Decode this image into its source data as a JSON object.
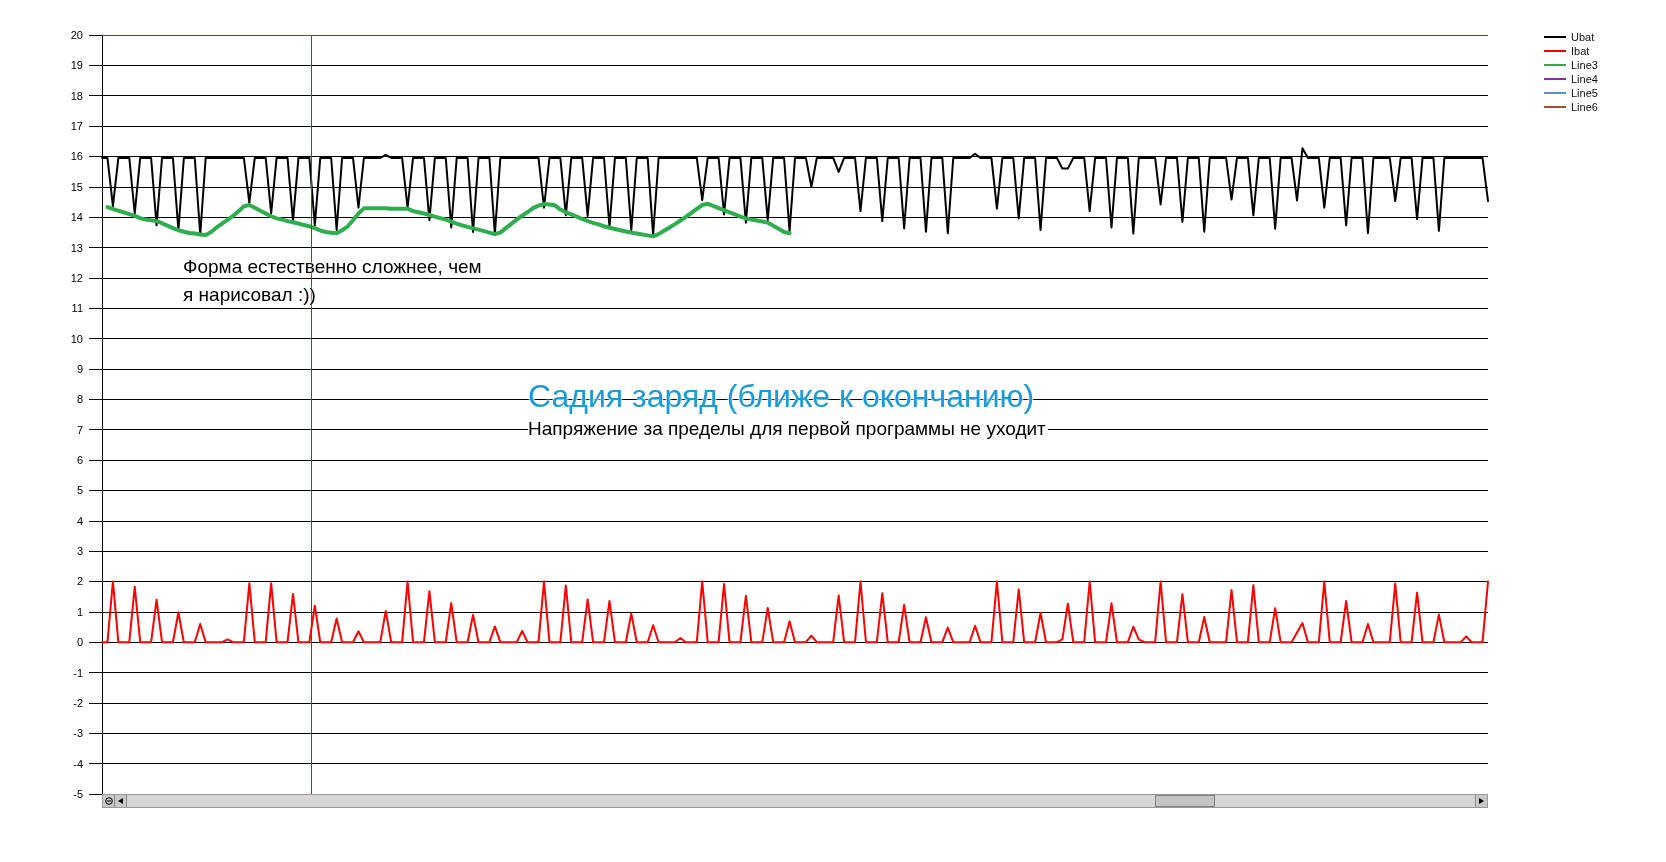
{
  "chart_data": {
    "type": "line",
    "title": "Садия заряд (ближе к окончанию)",
    "subtitle": "Напряжение за пределы для первой программы не уходит",
    "annotations": [
      "Форма естественно сложнее, чем я нарисовал :))"
    ],
    "categories": [
      null,
      null,
      null,
      null,
      null,
      null,
      null,
      null,
      null,
      null,
      null,
      null,
      null,
      null,
      null,
      null,
      null,
      null,
      null,
      null,
      null,
      null,
      null,
      null,
      null,
      null,
      null,
      null,
      null,
      null,
      null,
      null,
      null,
      null,
      null,
      null,
      null,
      null,
      null,
      null,
      null,
      null,
      null,
      null,
      null,
      null,
      null,
      null,
      null,
      null,
      null,
      null,
      null,
      null,
      null,
      null,
      null,
      null,
      null,
      null,
      null,
      null,
      null,
      null,
      null,
      null,
      null,
      null,
      null,
      null,
      null,
      null,
      null,
      null,
      null,
      null,
      null,
      null,
      null,
      null,
      null,
      null,
      null,
      null,
      null,
      null,
      null,
      null,
      null,
      null,
      null,
      null,
      null,
      null,
      null,
      null,
      null,
      null,
      null,
      null,
      null,
      null,
      null,
      null,
      null,
      null,
      null,
      null,
      null,
      null,
      null,
      null,
      null,
      null,
      null,
      null,
      null,
      null,
      null,
      null,
      null,
      null,
      null,
      null,
      null,
      null,
      null,
      null,
      null,
      null,
      null,
      null,
      null,
      null,
      null,
      null,
      null,
      null,
      null,
      null,
      null,
      null,
      null,
      null,
      null,
      null,
      null,
      null,
      null,
      null,
      null,
      null,
      null,
      null,
      null,
      null,
      null,
      null,
      null,
      null,
      null,
      null,
      null,
      null,
      null,
      null,
      null,
      null,
      null,
      null,
      null,
      null,
      null,
      null,
      null,
      null,
      null,
      null,
      null,
      null,
      null,
      null,
      null,
      null,
      null,
      null,
      null,
      null,
      null,
      null,
      null,
      null,
      null,
      null,
      null,
      null,
      null,
      null,
      null,
      null,
      null,
      null,
      null,
      null,
      null,
      null,
      null,
      null,
      null,
      null,
      null,
      null,
      null,
      null,
      null,
      null,
      null,
      null,
      null,
      null,
      null,
      null,
      null,
      null,
      null,
      null,
      null,
      null,
      null,
      null,
      null,
      null,
      null,
      null,
      null,
      null,
      null,
      null,
      null,
      null,
      null,
      null,
      null,
      null,
      null,
      null,
      null,
      null,
      null,
      null,
      null,
      null,
      null,
      null,
      null
    ],
    "series": [
      {
        "name": "Ubat",
        "color": "#000000",
        "values": [
          15.95,
          15.95,
          14.36,
          15.95,
          15.95,
          15.95,
          14.12,
          15.95,
          15.95,
          15.95,
          13.73,
          15.95,
          15.95,
          15.95,
          13.57,
          15.95,
          15.95,
          15.95,
          13.42,
          15.95,
          15.95,
          15.95,
          15.95,
          15.95,
          15.95,
          15.95,
          15.95,
          14.47,
          15.95,
          15.95,
          15.95,
          14.12,
          15.95,
          15.95,
          15.95,
          13.87,
          15.95,
          15.95,
          15.95,
          13.73,
          15.95,
          15.95,
          15.95,
          13.58,
          15.95,
          15.95,
          15.95,
          14.31,
          15.95,
          15.95,
          15.95,
          15.95,
          16.05,
          15.95,
          15.95,
          15.95,
          14.31,
          15.95,
          15.95,
          15.95,
          13.9,
          15.95,
          15.95,
          15.95,
          13.66,
          15.95,
          15.95,
          15.95,
          13.51,
          15.95,
          15.95,
          15.95,
          13.44,
          15.95,
          15.95,
          15.95,
          15.95,
          15.95,
          15.95,
          15.95,
          15.95,
          14.31,
          15.95,
          15.95,
          15.95,
          14.06,
          15.95,
          15.95,
          15.95,
          14.04,
          15.95,
          15.95,
          15.95,
          13.68,
          15.95,
          15.95,
          15.95,
          13.57,
          15.95,
          15.95,
          15.95,
          13.4,
          15.95,
          15.95,
          15.95,
          15.95,
          15.95,
          15.95,
          15.95,
          15.95,
          14.56,
          15.95,
          15.95,
          15.95,
          14.09,
          15.95,
          15.95,
          15.95,
          13.82,
          15.95,
          15.95,
          15.95,
          13.9,
          15.95,
          15.95,
          15.95,
          13.54,
          15.95,
          15.95,
          15.95,
          15.0,
          15.95,
          15.95,
          15.95,
          15.95,
          15.49,
          15.95,
          15.95,
          15.95,
          14.2,
          15.95,
          15.95,
          15.95,
          13.87,
          15.95,
          15.95,
          15.95,
          13.63,
          15.95,
          15.95,
          15.95,
          13.52,
          15.95,
          15.95,
          15.95,
          13.47,
          15.95,
          15.95,
          15.95,
          15.95,
          16.09,
          15.95,
          15.95,
          15.95,
          14.28,
          15.95,
          15.95,
          15.95,
          13.96,
          15.95,
          15.95,
          15.95,
          13.58,
          15.95,
          15.95,
          15.95,
          15.6,
          15.6,
          15.95,
          15.95,
          15.95,
          14.2,
          15.95,
          15.95,
          15.95,
          13.66,
          15.95,
          15.95,
          15.95,
          13.46,
          15.95,
          15.95,
          15.95,
          15.95,
          14.42,
          15.95,
          15.95,
          15.95,
          13.84,
          15.95,
          15.95,
          15.95,
          13.52,
          15.95,
          15.95,
          15.95,
          15.95,
          14.58,
          15.95,
          15.95,
          15.95,
          14.06,
          15.95,
          15.95,
          15.95,
          13.62,
          15.95,
          15.95,
          15.95,
          14.55,
          16.27,
          15.95,
          15.95,
          15.95,
          14.31,
          15.95,
          15.95,
          15.95,
          13.73,
          15.95,
          15.95,
          15.95,
          13.47,
          15.95,
          15.95,
          15.95,
          15.95,
          14.53,
          15.95,
          15.95,
          15.95,
          13.93,
          15.95,
          15.95,
          15.95,
          13.55,
          15.95,
          15.95,
          15.95,
          15.95,
          15.95,
          15.95,
          15.95,
          15.95,
          14.53
        ]
      },
      {
        "name": "Ibat",
        "color": "#ff0000",
        "values": [
          0,
          0,
          2.0,
          0,
          0,
          0,
          1.83,
          0,
          0,
          0,
          1.4,
          0,
          0,
          0,
          0.98,
          0,
          0,
          0,
          0.6,
          0,
          0,
          0,
          0,
          0.09,
          0,
          0,
          0,
          1.94,
          0,
          0,
          0,
          1.94,
          0,
          0,
          0,
          1.59,
          0,
          0,
          0,
          1.2,
          0,
          0,
          0,
          0.78,
          0,
          0,
          0,
          0.36,
          0,
          0,
          0,
          0,
          1.03,
          0,
          0,
          0,
          2.0,
          0,
          0,
          0,
          1.68,
          0,
          0,
          0,
          1.29,
          0,
          0,
          0,
          0.9,
          0,
          0,
          0,
          0.52,
          0,
          0,
          0,
          0,
          0.37,
          0,
          0,
          0,
          2.0,
          0,
          0,
          0,
          1.87,
          0,
          0,
          0,
          1.41,
          0,
          0,
          0,
          1.36,
          0,
          0,
          0,
          0.94,
          0,
          0,
          0,
          0.56,
          0,
          0,
          0,
          0,
          0.14,
          0,
          0,
          0,
          2.0,
          0,
          0,
          0,
          1.92,
          0,
          0,
          0,
          1.53,
          0,
          0,
          0,
          1.13,
          0,
          0,
          0,
          0.69,
          0,
          0,
          0,
          0.22,
          0,
          0,
          0,
          0,
          1.54,
          0,
          0,
          0,
          2.0,
          0,
          0,
          0,
          1.61,
          0,
          0,
          0,
          1.23,
          0,
          0,
          0,
          0.82,
          0,
          0,
          0,
          0.48,
          0,
          0,
          0,
          0,
          0.54,
          0,
          0,
          0,
          2.0,
          0,
          0,
          0,
          1.74,
          0,
          0,
          0,
          0.96,
          0,
          0,
          0,
          0.09,
          1.27,
          0,
          0,
          0,
          2.0,
          0,
          0,
          0,
          1.28,
          0,
          0,
          0,
          0.51,
          0.09,
          0,
          0,
          0,
          2.0,
          0,
          0,
          0,
          1.58,
          0,
          0,
          0,
          0.83,
          0,
          0,
          0,
          0,
          1.72,
          0,
          0,
          0,
          1.88,
          0,
          0,
          0,
          1.12,
          0,
          0,
          0,
          0.32,
          0.63,
          0,
          0,
          0,
          2.0,
          0,
          0,
          0,
          1.36,
          0,
          0,
          0,
          0.6,
          0,
          0,
          0,
          0,
          1.93,
          0,
          0,
          0,
          1.63,
          0,
          0,
          0,
          0.91,
          0,
          0,
          0,
          0,
          0.19,
          0,
          0,
          0,
          2.0
        ]
      },
      {
        "name": "Line3",
        "color": "#2eae4f",
        "values": [
          null,
          14.33,
          14.27,
          14.21,
          14.16,
          14.1,
          14.04,
          13.97,
          13.92,
          13.9,
          13.87,
          13.8,
          13.72,
          13.64,
          13.57,
          13.52,
          13.48,
          13.46,
          13.43,
          13.41,
          13.51,
          13.66,
          13.79,
          13.91,
          14.04,
          14.19,
          14.36,
          14.4,
          14.31,
          14.21,
          14.12,
          14.03,
          13.96,
          13.92,
          13.87,
          13.83,
          13.79,
          13.74,
          13.7,
          13.64,
          13.56,
          13.51,
          13.49,
          13.47,
          13.57,
          13.69,
          13.9,
          14.12,
          14.29,
          14.29,
          14.29,
          14.29,
          14.29,
          14.28,
          14.28,
          14.28,
          14.28,
          14.2,
          14.16,
          14.12,
          14.07,
          14.02,
          13.97,
          13.92,
          13.85,
          13.79,
          13.73,
          13.68,
          13.63,
          13.59,
          13.54,
          13.49,
          13.44,
          13.49,
          13.64,
          13.78,
          13.92,
          14.05,
          14.17,
          14.3,
          14.38,
          14.43,
          14.42,
          14.39,
          14.25,
          14.16,
          14.09,
          14.02,
          13.94,
          13.87,
          13.81,
          13.76,
          13.7,
          13.65,
          13.61,
          13.57,
          13.53,
          13.49,
          13.46,
          13.43,
          13.4,
          13.37,
          13.44,
          13.55,
          13.66,
          13.77,
          13.89,
          14.01,
          14.14,
          14.27,
          14.4,
          14.44,
          14.37,
          14.3,
          14.23,
          14.16,
          14.09,
          14.02,
          13.96,
          13.92,
          13.89,
          13.86,
          13.82,
          13.72,
          13.62,
          13.51,
          13.47,
          null,
          null,
          null,
          null,
          null,
          null,
          null,
          null,
          null,
          null,
          null,
          null,
          null,
          null,
          null,
          null,
          null,
          null,
          null,
          null,
          null,
          null,
          null,
          null,
          null,
          null,
          null,
          null,
          null,
          null,
          null,
          null,
          null,
          null,
          null,
          null,
          null,
          null,
          null,
          null,
          null,
          null,
          null,
          null,
          null,
          null,
          null,
          null,
          null,
          null,
          null,
          null,
          null,
          null,
          null,
          null,
          null,
          null,
          null,
          null,
          null,
          null,
          null,
          null,
          null,
          null,
          null,
          null,
          null,
          null,
          null,
          null,
          null,
          null,
          null,
          null,
          null,
          null,
          null,
          null,
          null,
          null,
          null,
          null,
          null,
          null,
          null,
          null,
          null,
          null,
          null,
          null,
          null,
          null,
          null,
          null,
          null,
          null,
          null,
          null,
          null,
          null,
          null,
          null,
          null,
          null,
          null,
          null,
          null,
          null,
          null,
          null,
          null,
          null,
          null,
          null,
          null,
          null,
          null,
          null,
          null,
          null,
          null,
          null,
          null,
          null,
          null,
          null
        ]
      },
      {
        "name": "Line4",
        "color": "#8a2ba0",
        "values": [
          null,
          null,
          null,
          null,
          null,
          null,
          null,
          null,
          null,
          null,
          null,
          null,
          null,
          null,
          null,
          null,
          null,
          null,
          null,
          null,
          null,
          null,
          null,
          null,
          null,
          null,
          null,
          null,
          null,
          null,
          null,
          null,
          null,
          null,
          null,
          null,
          null,
          null,
          null,
          null,
          null,
          null,
          null,
          null,
          null,
          null,
          null,
          null,
          null,
          null,
          null,
          null,
          null,
          null,
          null,
          null,
          null,
          null,
          null,
          null,
          null,
          null,
          null,
          null,
          null,
          null,
          null,
          null,
          null,
          null,
          null,
          null,
          null,
          null,
          null,
          null,
          null,
          null,
          null,
          null,
          null,
          null,
          null,
          null,
          null,
          null,
          null,
          null,
          null,
          null,
          null,
          null,
          null,
          null,
          null,
          null,
          null,
          null,
          null,
          null,
          null,
          null,
          null,
          null,
          null,
          null,
          null,
          null,
          null,
          null,
          null,
          null,
          null,
          null,
          null,
          null,
          null,
          null,
          null,
          null,
          null,
          null,
          null,
          null,
          null,
          null,
          null,
          null,
          null,
          null,
          null,
          null,
          null,
          null,
          null,
          null,
          null,
          null,
          null,
          null,
          null,
          null,
          null,
          null,
          null,
          null,
          null,
          null,
          null,
          null,
          null,
          null,
          null,
          null,
          null,
          null,
          null,
          null,
          null,
          null,
          null,
          null,
          null,
          null,
          null,
          null,
          null,
          null,
          null,
          null,
          null,
          null,
          null,
          null,
          null,
          null,
          null,
          null,
          null,
          null,
          null,
          null,
          null,
          null,
          null,
          null,
          null,
          null,
          null,
          null,
          null,
          null,
          null,
          null,
          null,
          null,
          null,
          null,
          null,
          null,
          null,
          null,
          null,
          null,
          null,
          null,
          null,
          null,
          null,
          null,
          null,
          null,
          null,
          null,
          null,
          null,
          null,
          null,
          null,
          null,
          null,
          null,
          null,
          null,
          null,
          null,
          null,
          null,
          null,
          null,
          null,
          null,
          null,
          null,
          null,
          null,
          null,
          null,
          null,
          null,
          null,
          null,
          null,
          null,
          null,
          null,
          null,
          null,
          null,
          null,
          null,
          null,
          null,
          null,
          null
        ]
      },
      {
        "name": "Line5",
        "color": "#5a8fcf",
        "values": [
          null,
          null,
          null,
          null,
          null,
          null,
          null,
          null,
          null,
          null,
          null,
          null,
          null,
          null,
          null,
          null,
          null,
          null,
          null,
          null,
          null,
          null,
          null,
          null,
          null,
          null,
          null,
          null,
          null,
          null,
          null,
          null,
          null,
          null,
          null,
          null,
          null,
          null,
          null,
          null,
          null,
          null,
          null,
          null,
          null,
          null,
          null,
          null,
          null,
          null,
          null,
          null,
          null,
          null,
          null,
          null,
          null,
          null,
          null,
          null,
          null,
          null,
          null,
          null,
          null,
          null,
          null,
          null,
          null,
          null,
          null,
          null,
          null,
          null,
          null,
          null,
          null,
          null,
          null,
          null,
          null,
          null,
          null,
          null,
          null,
          null,
          null,
          null,
          null,
          null,
          null,
          null,
          null,
          null,
          null,
          null,
          null,
          null,
          null,
          null,
          null,
          null,
          null,
          null,
          null,
          null,
          null,
          null,
          null,
          null,
          null,
          null,
          null,
          null,
          null,
          null,
          null,
          null,
          null,
          null,
          null,
          null,
          null,
          null,
          null,
          null,
          null,
          null,
          null,
          null,
          null,
          null,
          null,
          null,
          null,
          null,
          null,
          null,
          null,
          null,
          null,
          null,
          null,
          null,
          null,
          null,
          null,
          null,
          null,
          null,
          null,
          null,
          null,
          null,
          null,
          null,
          null,
          null,
          null,
          null,
          null,
          null,
          null,
          null,
          null,
          null,
          null,
          null,
          null,
          null,
          null,
          null,
          null,
          null,
          null,
          null,
          null,
          null,
          null,
          null,
          null,
          null,
          null,
          null,
          null,
          null,
          null,
          null,
          null,
          null,
          null,
          null,
          null,
          null,
          null,
          null,
          null,
          null,
          null,
          null,
          null,
          null,
          null,
          null,
          null,
          null,
          null,
          null,
          null,
          null,
          null,
          null,
          null,
          null,
          null,
          null,
          null,
          null,
          null,
          null,
          null,
          null,
          null,
          null,
          null,
          null,
          null,
          null,
          null,
          null,
          null,
          null,
          null,
          null,
          null,
          null,
          null,
          null,
          null,
          null,
          null,
          null,
          null,
          null,
          null,
          null,
          null,
          null,
          null,
          null,
          null,
          null,
          null,
          null,
          null
        ]
      },
      {
        "name": "Line6",
        "color": "#a0522d",
        "values": [
          null,
          null,
          null,
          null,
          null,
          null,
          null,
          null,
          null,
          null,
          null,
          null,
          null,
          null,
          null,
          null,
          null,
          null,
          null,
          null,
          null,
          null,
          null,
          null,
          null,
          null,
          null,
          null,
          null,
          null,
          null,
          null,
          null,
          null,
          null,
          null,
          null,
          null,
          null,
          null,
          null,
          null,
          null,
          null,
          null,
          null,
          null,
          null,
          null,
          null,
          null,
          null,
          null,
          null,
          null,
          null,
          null,
          null,
          null,
          null,
          null,
          null,
          null,
          null,
          null,
          null,
          null,
          null,
          null,
          null,
          null,
          null,
          null,
          null,
          null,
          null,
          null,
          null,
          null,
          null,
          null,
          null,
          null,
          null,
          null,
          null,
          null,
          null,
          null,
          null,
          null,
          null,
          null,
          null,
          null,
          null,
          null,
          null,
          null,
          null,
          null,
          null,
          null,
          null,
          null,
          null,
          null,
          null,
          null,
          null,
          null,
          null,
          null,
          null,
          null,
          null,
          null,
          null,
          null,
          null,
          null,
          null,
          null,
          null,
          null,
          null,
          null,
          null,
          null,
          null,
          null,
          null,
          null,
          null,
          null,
          null,
          null,
          null,
          null,
          null,
          null,
          null,
          null,
          null,
          null,
          null,
          null,
          null,
          null,
          null,
          null,
          null,
          null,
          null,
          null,
          null,
          null,
          null,
          null,
          null,
          null,
          null,
          null,
          null,
          null,
          null,
          null,
          null,
          null,
          null,
          null,
          null,
          null,
          null,
          null,
          null,
          null,
          null,
          null,
          null,
          null,
          null,
          null,
          null,
          null,
          null,
          null,
          null,
          null,
          null,
          null,
          null,
          null,
          null,
          null,
          null,
          null,
          null,
          null,
          null,
          null,
          null,
          null,
          null,
          null,
          null,
          null,
          null,
          null,
          null,
          null,
          null,
          null,
          null,
          null,
          null,
          null,
          null,
          null,
          null,
          null,
          null,
          null,
          null,
          null,
          null,
          null,
          null,
          null,
          null,
          null,
          null,
          null,
          null,
          null,
          null,
          null,
          null,
          null,
          null,
          null,
          null,
          null,
          null,
          null,
          null,
          null,
          null,
          null,
          null,
          null,
          null,
          null,
          null,
          null
        ]
      }
    ],
    "ylim": [
      -5,
      20
    ],
    "yticks": [
      -5,
      -4,
      -3,
      -2,
      -1,
      0,
      1,
      2,
      3,
      4,
      5,
      6,
      7,
      8,
      9,
      10,
      11,
      12,
      13,
      14,
      15,
      16,
      17,
      18,
      19,
      20
    ],
    "grid": "y",
    "legend": "top right",
    "ref_lines": [
      {
        "axis": "y",
        "value": 20,
        "color": "#ff0000"
      }
    ]
  }
}
